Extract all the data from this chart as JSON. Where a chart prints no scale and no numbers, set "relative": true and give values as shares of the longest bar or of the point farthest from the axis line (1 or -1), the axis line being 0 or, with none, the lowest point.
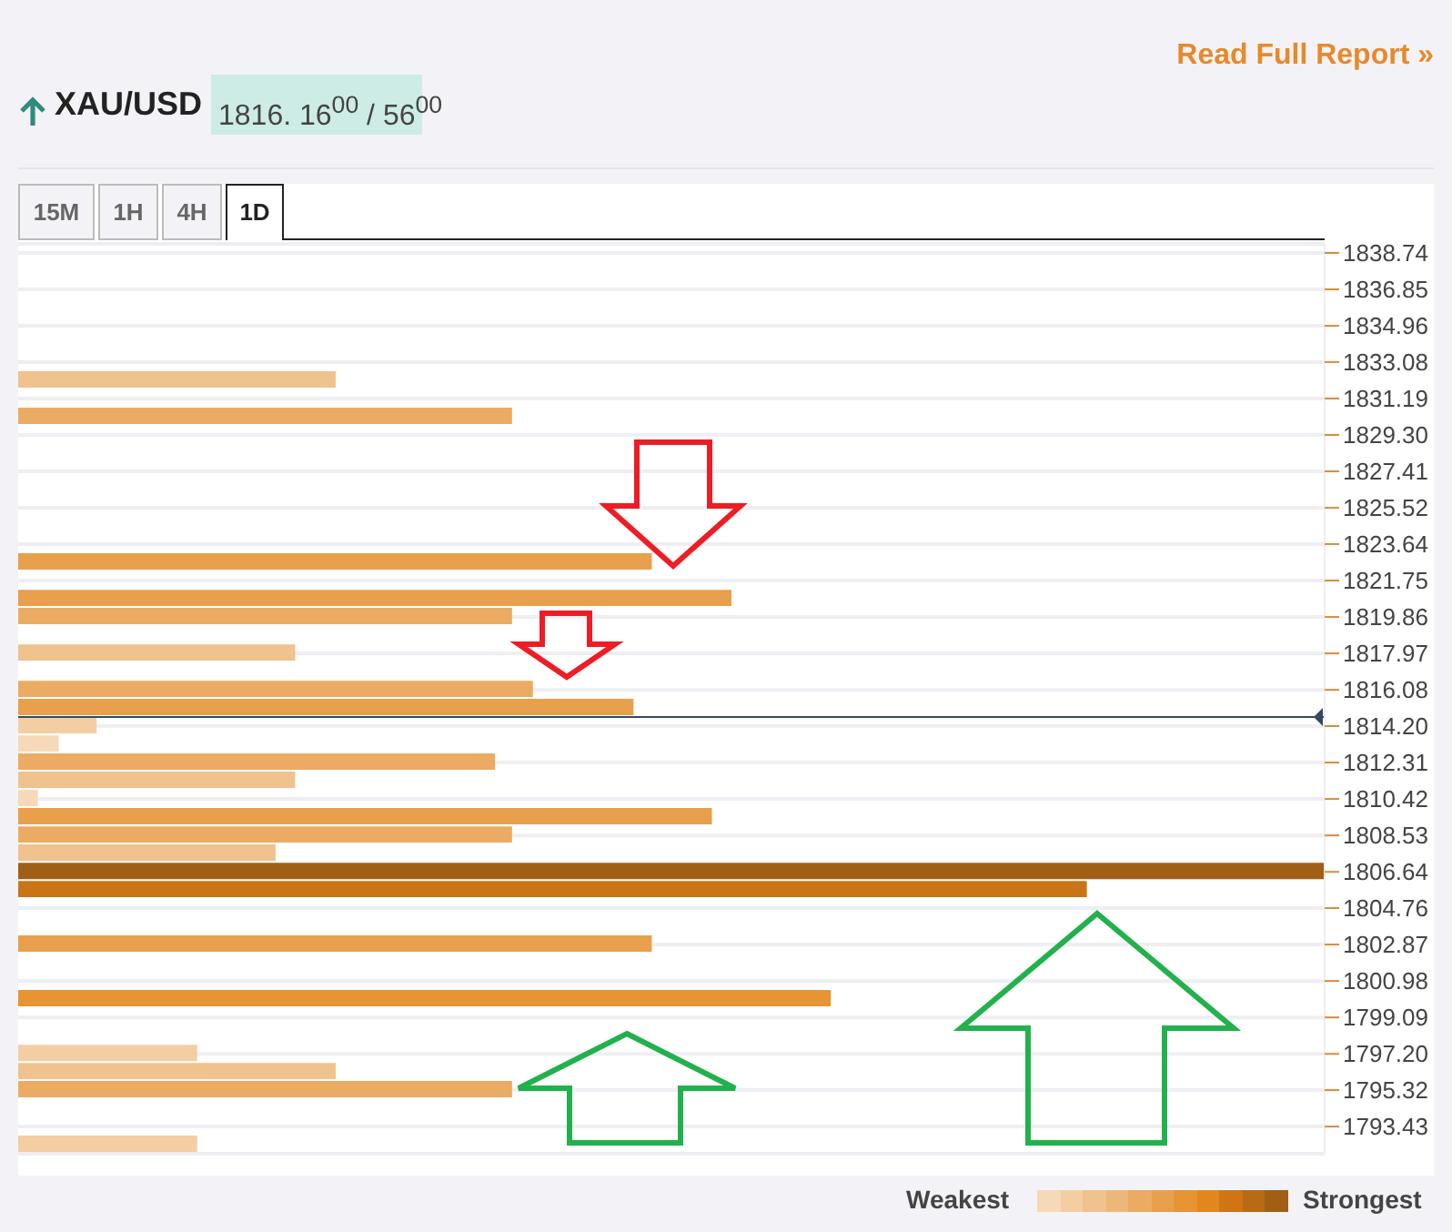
{
  "chart_data": {
    "type": "bar",
    "orientation": "horizontal",
    "relative": true,
    "title": "XAU/USD",
    "x": [
      1832.13,
      1830.24,
      1822.69,
      1820.8,
      1819.86,
      1817.97,
      1816.08,
      1815.14,
      1814.2,
      1813.25,
      1812.31,
      1811.37,
      1810.42,
      1809.48,
      1808.53,
      1807.59,
      1806.64,
      1805.7,
      1802.87,
      1800.04,
      1797.2,
      1796.26,
      1795.32,
      1792.49
    ],
    "values": [
      0.243,
      0.378,
      0.485,
      0.546,
      0.378,
      0.212,
      0.394,
      0.471,
      0.06,
      0.031,
      0.365,
      0.212,
      0.015,
      0.531,
      0.378,
      0.197,
      1,
      0.818,
      0.485,
      0.622,
      0.137,
      0.243,
      0.378,
      0.137
    ],
    "colors": [
      "#f0c28e",
      "#ecab62",
      "#e8a04c",
      "#e8a04c",
      "#ecab62",
      "#f0c28e",
      "#ecab62",
      "#e8a04c",
      "#f3cea3",
      "#f5d9b8",
      "#ecab62",
      "#f0c28e",
      "#f5d9b8",
      "#e8a04c",
      "#ecab62",
      "#f0c28e",
      "#a05f14",
      "#c97516",
      "#e8a04c",
      "#e69434",
      "#f3cea3",
      "#f0c28e",
      "#ecab62",
      "#f3cea3"
    ],
    "ylim": [
      1792.02,
      1839.21
    ],
    "yticks": [
      1838.74,
      1836.85,
      1834.96,
      1833.08,
      1831.19,
      {
        "value": 1829.3,
        "label": "1829.30"
      },
      1827.41,
      1825.52,
      1823.64,
      1821.75,
      1819.86,
      1817.97,
      1816.08,
      {
        "value": 1814.2,
        "label": "1814.20"
      },
      1812.31,
      1810.42,
      1808.53,
      1806.64,
      1804.76,
      1802.87,
      1800.98,
      1799.09,
      {
        "value": 1797.2,
        "label": "1797.20"
      },
      1795.32,
      1793.43
    ],
    "grid": "y",
    "ref_lines": [
      {
        "axis": "y",
        "value": 1814.67,
        "color": "#34495e"
      }
    ],
    "annotations": [
      "Read Full Report »",
      "1816. 16$^{00}$ / 56$^{00}$",
      "15M",
      "1H",
      "4H",
      "1D",
      "Weakest",
      "Strongest"
    ]
  }
}
